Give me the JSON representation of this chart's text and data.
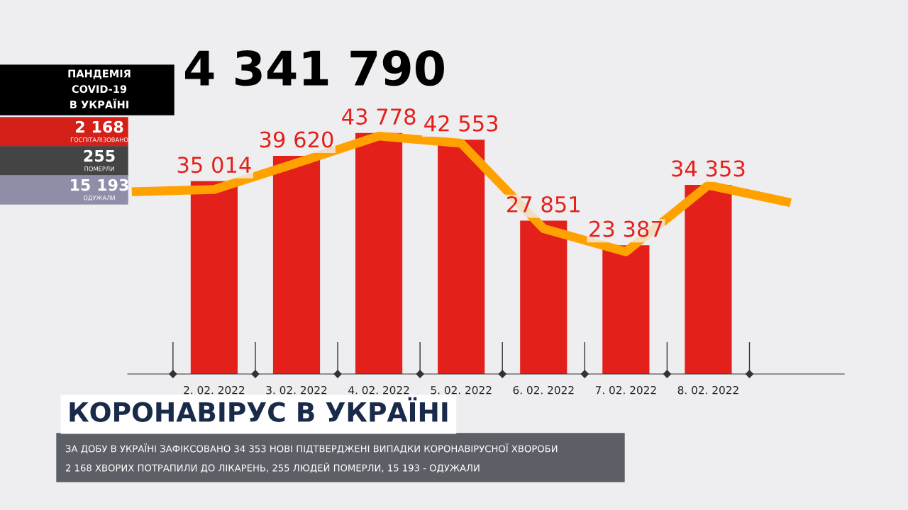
{
  "chart_data": {
    "type": "bar",
    "title": "КОРОНАВІРУС В УКРАЇНІ",
    "subtitle": "ПАНДЕМІЯ\nCOVID-19\nВ УКРАЇНІ",
    "categories": [
      null,
      "2. 02. 2022",
      "3. 02. 2022",
      "4. 02. 2022",
      "5. 02. 2022",
      "6. 02. 2022",
      "7. 02. 2022",
      "8. 02. 2022",
      null
    ],
    "series": [
      {
        "color": "#e3201a",
        "values": [
          null,
          35014,
          39620,
          43778,
          42553,
          27851,
          23387,
          34353,
          null
        ],
        "value_labels": [
          null,
          "35 014",
          "39 620",
          "43 778",
          "42 553",
          "27 851",
          "23 387",
          "34 353",
          null
        ]
      },
      {
        "type": "line",
        "color": "#ffa200",
        "values": [
          33100,
          33500,
          38300,
          43200,
          41900,
          26400,
          22200,
          34300,
          31100
        ]
      }
    ],
    "annotations": [
      "4 341 790",
      "2 168",
      "ГОСПІТАЛІЗОВАНО",
      "255",
      "ПОМЕРЛИ",
      "15 193",
      "ОДУЖАЛИ",
      "ЗА ДОБУ В УКРАЇНІ ЗАФІКСОВАНО 34 353 НОВІ ПІДТВЕРДЖЕНІ ВИПАДКИ КОРОНАВІРУСНОЇ ХВОРОБИ",
      "2 168 ХВОРИХ ПОТРАПИЛИ ДО ЛІКАРЕНЬ, 255 ЛЮДЕЙ ПОМЕРЛИ, 15 193 - ОДУЖАЛИ"
    ],
    "grid": false,
    "legend": false
  }
}
